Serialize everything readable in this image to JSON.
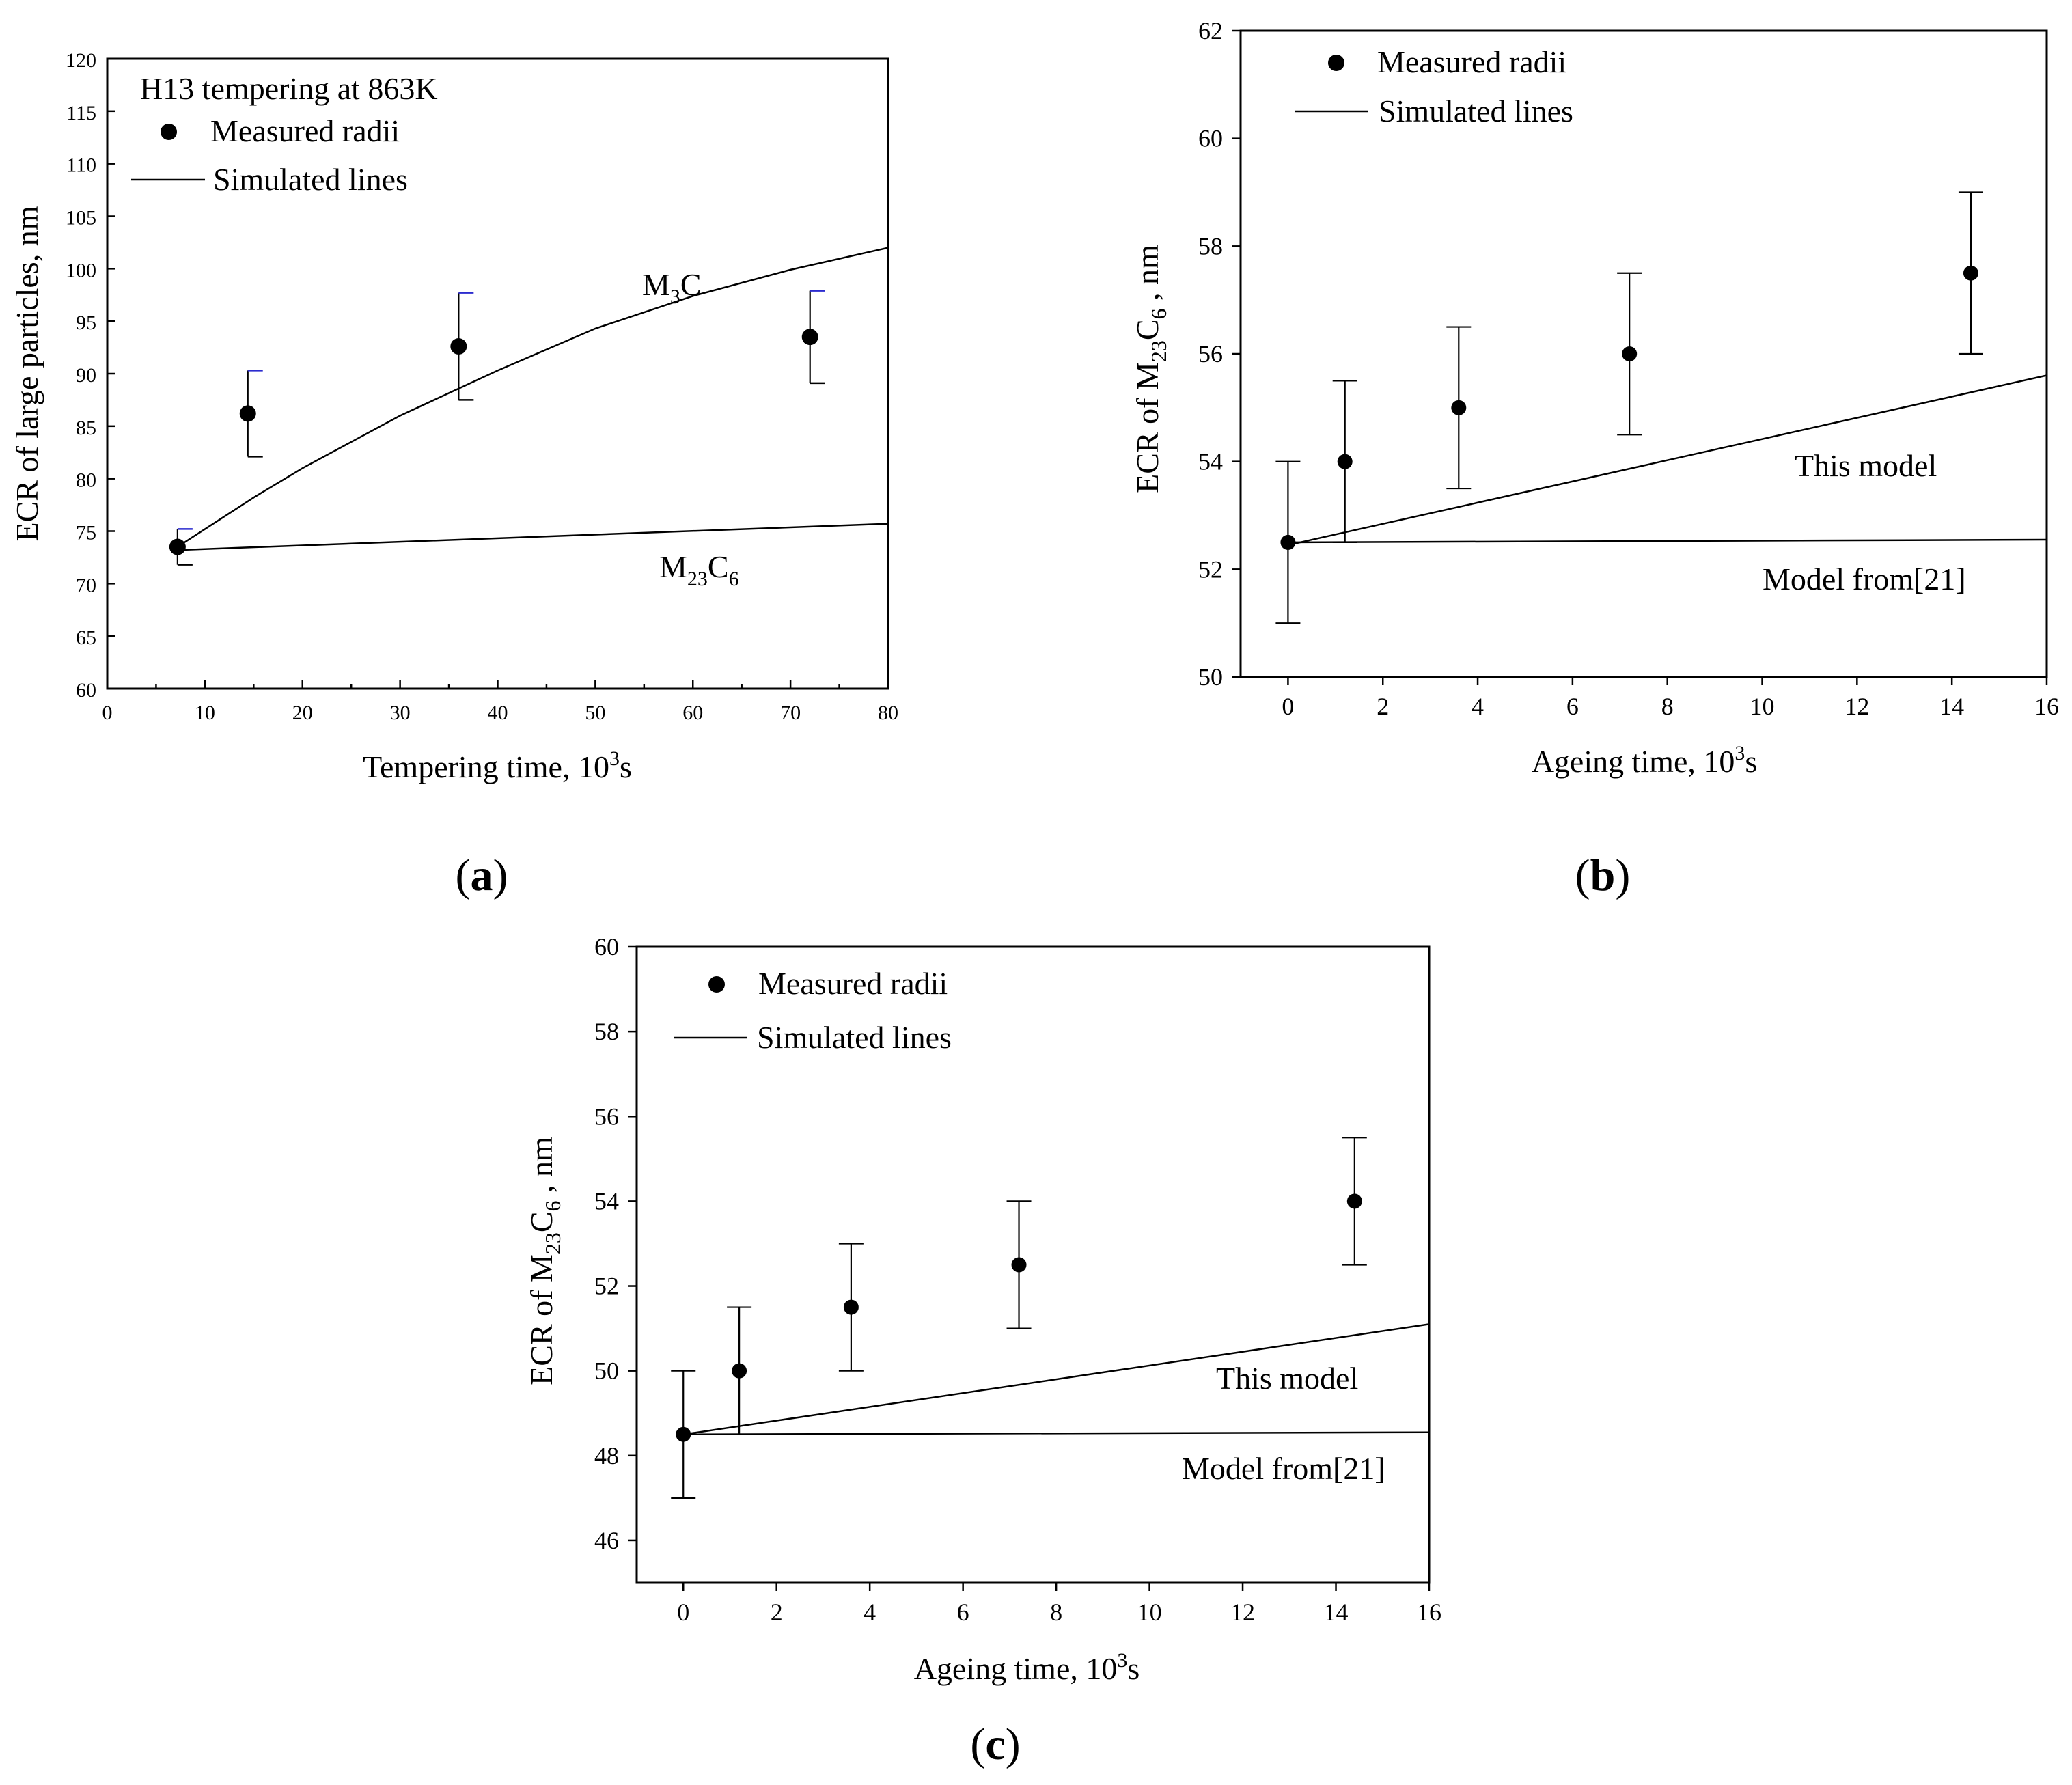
{
  "figure": {
    "panels": [
      "(a)",
      "(b)",
      "(c)"
    ],
    "panel_letters": [
      "a",
      "b",
      "c"
    ]
  },
  "chart_data": [
    {
      "id": "a",
      "type": "scatter",
      "annotation": "H13 tempering at 863K",
      "legend": {
        "marker_label": "Measured radii",
        "line_label": "Simulated lines",
        "position": "top-left"
      },
      "xlabel": "Tempering time, 10^3s",
      "ylabel": "ECR of large particles, nm",
      "xlim": [
        0,
        80
      ],
      "ylim": [
        60,
        120
      ],
      "xticks": [
        0,
        10,
        20,
        30,
        40,
        50,
        60,
        70,
        80
      ],
      "yticks": [
        60,
        65,
        70,
        75,
        80,
        85,
        90,
        95,
        100,
        105,
        110,
        115,
        120
      ],
      "measured": {
        "x": [
          7.2,
          14.4,
          36,
          72
        ],
        "y": [
          73.5,
          86.2,
          92.6,
          93.5
        ],
        "err_low": [
          1.7,
          4.1,
          5.1,
          4.4
        ],
        "err_high": [
          1.7,
          4.1,
          5.1,
          4.4
        ]
      },
      "series": [
        {
          "name": "M3C",
          "label_main": "M",
          "label_sub": "3",
          "label_tail": "C",
          "x": [
            7.2,
            15,
            20,
            30,
            40,
            50,
            60,
            70,
            80
          ],
          "y": [
            73.5,
            78.2,
            81.0,
            86.0,
            90.3,
            94.3,
            97.4,
            99.9,
            102.0
          ]
        },
        {
          "name": "M23C6",
          "label_main": "M",
          "label_sub": "23",
          "label_tail": "C",
          "label_sub2": "6",
          "x": [
            7.2,
            80
          ],
          "y": [
            73.2,
            75.7
          ]
        }
      ]
    },
    {
      "id": "b",
      "type": "scatter",
      "legend": {
        "marker_label": "Measured radii",
        "line_label": "Simulated lines",
        "position": "top-left"
      },
      "xlabel": "Ageing time, 10^3s",
      "ylabel": "ECR of M23C6 , nm",
      "xlim": [
        -1,
        16
      ],
      "ylim": [
        50,
        62
      ],
      "xticks": [
        0,
        2,
        4,
        6,
        8,
        10,
        12,
        14,
        16
      ],
      "yticks": [
        50,
        52,
        54,
        56,
        58,
        60,
        62
      ],
      "measured": {
        "x": [
          0,
          1.2,
          3.6,
          7.2,
          14.4
        ],
        "y": [
          52.5,
          54,
          55,
          56,
          57.5
        ],
        "err_low": [
          1.5,
          1.5,
          1.5,
          1.5,
          1.5
        ],
        "err_high": [
          1.5,
          1.5,
          1.5,
          1.5,
          1.5
        ]
      },
      "series": [
        {
          "name": "This model",
          "x": [
            0,
            16
          ],
          "y": [
            52.45,
            55.6
          ]
        },
        {
          "name": "Model from[21]",
          "x": [
            0,
            16
          ],
          "y": [
            52.5,
            52.55
          ]
        }
      ]
    },
    {
      "id": "c",
      "type": "scatter",
      "legend": {
        "marker_label": "Measured radii",
        "line_label": "Simulated lines",
        "position": "top-left"
      },
      "xlabel": "Ageing time, 10^3s",
      "ylabel": "ECR of M23C6 , nm",
      "xlim": [
        -1,
        16
      ],
      "ylim": [
        45,
        60
      ],
      "xticks": [
        0,
        2,
        4,
        6,
        8,
        10,
        12,
        14,
        16
      ],
      "yticks": [
        46,
        48,
        50,
        52,
        54,
        56,
        58,
        60
      ],
      "measured": {
        "x": [
          0,
          1.2,
          3.6,
          7.2,
          14.4
        ],
        "y": [
          48.5,
          50,
          51.5,
          52.5,
          54
        ],
        "err_low": [
          1.5,
          1.5,
          1.5,
          1.5,
          1.5
        ],
        "err_high": [
          1.5,
          1.5,
          1.5,
          1.5,
          1.5
        ]
      },
      "series": [
        {
          "name": "This model",
          "x": [
            0,
            16
          ],
          "y": [
            48.5,
            51.1
          ]
        },
        {
          "name": "Model from[21]",
          "x": [
            0,
            16
          ],
          "y": [
            48.5,
            48.55
          ]
        }
      ]
    }
  ]
}
